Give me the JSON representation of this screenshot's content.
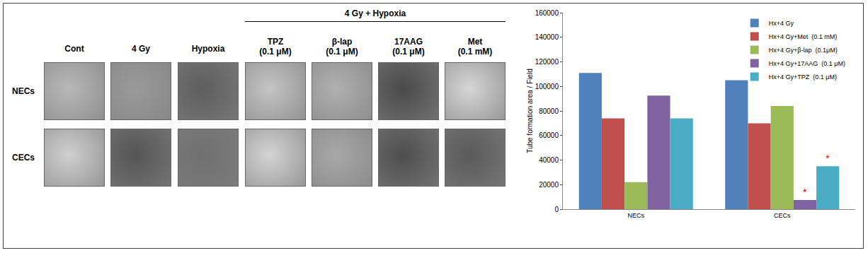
{
  "image_panel": {
    "group_header": "4 Gy + Hypoxia",
    "columns": [
      [
        "Cont"
      ],
      [
        "4 Gy"
      ],
      [
        "Hypoxia"
      ],
      [
        "TPZ",
        "(0.1 μM)"
      ],
      [
        "β-lap",
        "(0.1 μM)"
      ],
      [
        "17AAG",
        "(0.1 μM)"
      ],
      [
        "Met",
        "(0.1 mM)"
      ]
    ],
    "group_columns": [
      3,
      4,
      5,
      6
    ],
    "rows": [
      "NECs",
      "CECs"
    ]
  },
  "chart_data": {
    "type": "bar",
    "categories": [
      "NECs",
      "CECs"
    ],
    "y_label": "Tube formation area / Field",
    "ylim": [
      0,
      160000
    ],
    "yticks": [
      0,
      20000,
      40000,
      60000,
      80000,
      100000,
      120000,
      140000,
      160000
    ],
    "grid": false,
    "legend": "upper right",
    "series": [
      {
        "name": "Hx+4 Gy",
        "color": "#4F81BD",
        "values": [
          111000,
          105000
        ],
        "annotations": [
          null,
          null
        ]
      },
      {
        "name": "Hx+4 Gy+Met  (0.1 mM)",
        "color": "#C0504D",
        "values": [
          74000,
          70000
        ],
        "annotations": [
          null,
          null
        ]
      },
      {
        "name": "Hx+4 Gy+β-lap  (0.1μM)",
        "color": "#9BBB59",
        "values": [
          22000,
          84000
        ],
        "annotations": [
          null,
          null
        ]
      },
      {
        "name": "Hx+4 Gy+17AAG  (0.1 μM)",
        "color": "#8064A2",
        "values": [
          92500,
          7500
        ],
        "annotations": [
          null,
          "*"
        ]
      },
      {
        "name": "Hx+4 Gy+TPZ  (0.1 μM)",
        "color": "#4BACC6",
        "values": [
          74000,
          35000
        ],
        "annotations": [
          null,
          "*"
        ]
      }
    ]
  }
}
